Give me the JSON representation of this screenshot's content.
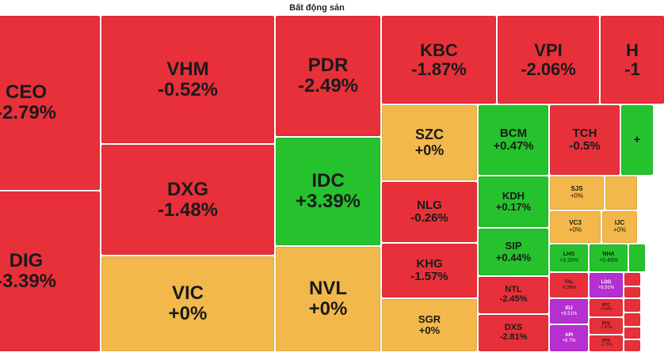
{
  "header": {
    "title": "Bất động sản"
  },
  "colors": {
    "down": "#e8303a",
    "flat": "#f2b84b",
    "up": "#25c22d",
    "ceiling": "#b62fd0",
    "floor": "#2bb7d6"
  },
  "chart_data": {
    "type": "treemap",
    "title": "Bất động sản",
    "items": [
      {
        "symbol": "CEO",
        "change_label": "-2.79%",
        "change": -2.79,
        "status": "down"
      },
      {
        "symbol": "DIG",
        "change_label": "-3.39%",
        "change": -3.39,
        "status": "down"
      },
      {
        "symbol": "VHM",
        "change_label": "-0.52%",
        "change": -0.52,
        "status": "down"
      },
      {
        "symbol": "DXG",
        "change_label": "-1.48%",
        "change": -1.48,
        "status": "down"
      },
      {
        "symbol": "VIC",
        "change_label": "+0%",
        "change": 0,
        "status": "flat"
      },
      {
        "symbol": "PDR",
        "change_label": "-2.49%",
        "change": -2.49,
        "status": "down"
      },
      {
        "symbol": "IDC",
        "change_label": "+3.39%",
        "change": 3.39,
        "status": "up"
      },
      {
        "symbol": "NVL",
        "change_label": "+0%",
        "change": 0,
        "status": "flat"
      },
      {
        "symbol": "KBC",
        "change_label": "-1.87%",
        "change": -1.87,
        "status": "down"
      },
      {
        "symbol": "VPI",
        "change_label": "-2.06%",
        "change": -2.06,
        "status": "down"
      },
      {
        "symbol": "H",
        "change_label": "-1",
        "change": null,
        "status": "down"
      },
      {
        "symbol": "SZC",
        "change_label": "+0%",
        "change": 0,
        "status": "flat"
      },
      {
        "symbol": "BCM",
        "change_label": "+0.47%",
        "change": 0.47,
        "status": "up"
      },
      {
        "symbol": "TCH",
        "change_label": "-0.5%",
        "change": -0.5,
        "status": "down"
      },
      {
        "symbol": "",
        "change_label": "+",
        "change": null,
        "status": "up"
      },
      {
        "symbol": "NLG",
        "change_label": "-0.26%",
        "change": -0.26,
        "status": "down"
      },
      {
        "symbol": "KDH",
        "change_label": "+0.17%",
        "change": 0.17,
        "status": "up"
      },
      {
        "symbol": "SJS",
        "change_label": "+0%",
        "change": 0,
        "status": "flat"
      },
      {
        "symbol": "",
        "change_label": "",
        "change": null,
        "status": "flat"
      },
      {
        "symbol": "VC3",
        "change_label": "+0%",
        "change": 0,
        "status": "flat"
      },
      {
        "symbol": "IJC",
        "change_label": "+0%",
        "change": 0,
        "status": "flat"
      },
      {
        "symbol": "KHG",
        "change_label": "-1.57%",
        "change": -1.57,
        "status": "down"
      },
      {
        "symbol": "SIP",
        "change_label": "+0.44%",
        "change": 0.44,
        "status": "up"
      },
      {
        "symbol": "LHG",
        "change_label": "+3.26%",
        "change": 3.26,
        "status": "up"
      },
      {
        "symbol": "NHA",
        "change_label": "+0.49%",
        "change": 0.49,
        "status": "up"
      },
      {
        "symbol": "",
        "change_label": "",
        "change": null,
        "status": "up"
      },
      {
        "symbol": "NTL",
        "change_label": "-2.45%",
        "change": -2.45,
        "status": "down"
      },
      {
        "symbol": "TAL",
        "change_label": "-0.36%",
        "change": -0.36,
        "status": "down"
      },
      {
        "symbol": "LDG",
        "change_label": "+6.91%",
        "change": 6.91,
        "status": "ceiling"
      },
      {
        "symbol": "",
        "change_label": "",
        "change": null,
        "status": "down"
      },
      {
        "symbol": "",
        "change_label": "",
        "change": null,
        "status": "down"
      },
      {
        "symbol": "SGR",
        "change_label": "+0%",
        "change": 0,
        "status": "flat"
      },
      {
        "symbol": "DXS",
        "change_label": "-2.81%",
        "change": -2.81,
        "status": "down"
      },
      {
        "symbol": "IDJ",
        "change_label": "+8.51%",
        "change": 8.51,
        "status": "ceiling"
      },
      {
        "symbol": "NTC",
        "change_label": "-0.94%",
        "change": -0.94,
        "status": "down"
      },
      {
        "symbol": "API",
        "change_label": "+8.7%",
        "change": 8.7,
        "status": "ceiling"
      },
      {
        "symbol": "EVG",
        "change_label": "-1.47%",
        "change": -1.47,
        "status": "down"
      },
      {
        "symbol": "DTD",
        "change_label": "-1.76%",
        "change": -1.76,
        "status": "down"
      },
      {
        "symbol": "",
        "change_label": "",
        "change": null,
        "status": "down"
      },
      {
        "symbol": "",
        "change_label": "",
        "change": null,
        "status": "down"
      },
      {
        "symbol": "",
        "change_label": "",
        "change": null,
        "status": "down"
      },
      {
        "symbol": "",
        "change_label": "",
        "change": null,
        "status": "down"
      }
    ]
  }
}
